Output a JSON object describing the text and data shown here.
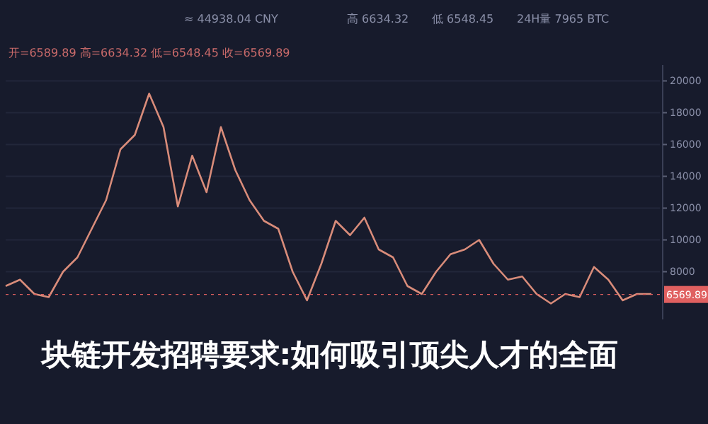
{
  "chart_data": {
    "type": "line",
    "title": "块链开发招聘要求:如何吸引顶尖人才的全面",
    "annotations": [
      "≈ 44938.04 CNY",
      "高 6634.32",
      "低 6548.45",
      "24H量 7965 BTC",
      "开=6589.89 高=6634.32 低=6548.45 收=6569.89"
    ],
    "categories": [
      null,
      null,
      null,
      null,
      null,
      null,
      null,
      null,
      null,
      null,
      null,
      null,
      null,
      null,
      null,
      null,
      null,
      null,
      null,
      null,
      null,
      null,
      null,
      null,
      null,
      null,
      null,
      null,
      null,
      null,
      null,
      null,
      null,
      null,
      null,
      null,
      null,
      null,
      null,
      null,
      null,
      null,
      null,
      null,
      null,
      null
    ],
    "series": [
      {
        "color": "#d98c7a",
        "values": [
          7100,
          7500,
          6600,
          6400,
          8000,
          8900,
          10700,
          12500,
          15700,
          16600,
          19200,
          17100,
          12100,
          15300,
          13000,
          17100,
          14400,
          12500,
          11200,
          10700,
          8000,
          6200,
          8500,
          11200,
          10300,
          11400,
          9400,
          8900,
          7100,
          6600,
          8000,
          9100,
          9400,
          10000,
          8500,
          7500,
          7700,
          6600,
          6000,
          6600,
          6400,
          8300,
          7500,
          6200,
          6600,
          6600
        ]
      }
    ],
    "ylim": [
      5000,
      21000
    ],
    "yticks": [
      8000,
      10000,
      12000,
      14000,
      16000,
      18000,
      20000
    ],
    "grid": "y",
    "ref_lines": [
      {
        "axis": "y",
        "value": 6569.89,
        "label": "6569.89",
        "color": "#e06060"
      }
    ]
  }
}
